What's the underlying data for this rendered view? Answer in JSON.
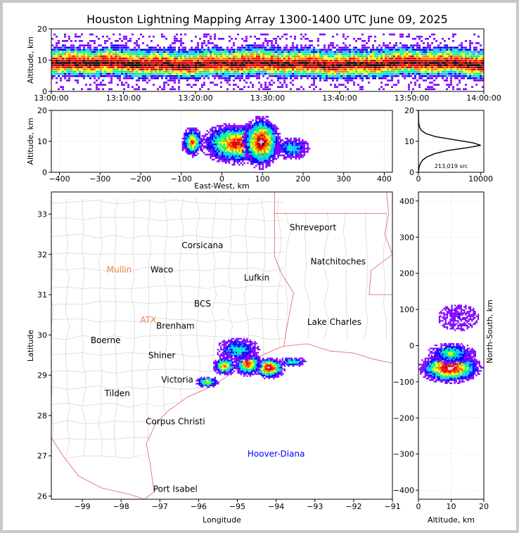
{
  "title": "Houston Lightning Mapping Array 1300-1400 UTC June 09, 2025",
  "colors": {
    "density_scale": [
      "#ffffff",
      "#7f00ff",
      "#0000ff",
      "#00c8ff",
      "#00ff80",
      "#ffff00",
      "#ff8000",
      "#ff0000",
      "#b40000",
      "#000000"
    ],
    "state_border": "#e06060",
    "county_border": "#cccccc",
    "city_label": "#000000",
    "station_label_orange": "#f08040",
    "hoover_label": "#0000ff"
  },
  "chart_data": [
    {
      "panel": "time-altitude",
      "type": "heatmap",
      "xlabel": "",
      "ylabel": "Altitude, km",
      "x_ticks": [
        "13:00:00",
        "13:10:00",
        "13:20:00",
        "13:30:00",
        "13:40:00",
        "13:50:00",
        "14:00:00"
      ],
      "y_ticks": [
        "0",
        "10",
        "20"
      ],
      "ylim": [
        0,
        20
      ],
      "core_altitude_km": 9
    },
    {
      "panel": "east-west-altitude",
      "type": "heatmap",
      "xlabel": "East-West, km",
      "ylabel": "Altitude, km",
      "x_ticks": [
        "−400",
        "−300",
        "−200",
        "−100",
        "0",
        "100",
        "200",
        "300",
        "400"
      ],
      "y_ticks": [
        "0",
        "10",
        "20"
      ],
      "xlim": [
        -420,
        420
      ],
      "ylim": [
        0,
        20
      ],
      "cells": [
        {
          "x_center_km": 35,
          "alt_center_km": 9.5,
          "x_halfwidth_km": 75,
          "alt_halfwidth_km": 5.5,
          "peak_level": 8
        },
        {
          "x_center_km": 95,
          "alt_center_km": 10,
          "x_halfwidth_km": 40,
          "alt_halfwidth_km": 7,
          "peak_level": 9
        },
        {
          "x_center_km": -75,
          "alt_center_km": 10,
          "x_halfwidth_km": 22,
          "alt_halfwidth_km": 4,
          "peak_level": 7
        },
        {
          "x_center_km": 170,
          "alt_center_km": 8,
          "x_halfwidth_km": 35,
          "alt_halfwidth_km": 3,
          "peak_level": 4
        }
      ]
    },
    {
      "panel": "altitude-histogram",
      "type": "line",
      "ylabel": "",
      "x_ticks": [
        "0",
        "10000"
      ],
      "y_ticks": [
        "0",
        "10",
        "20"
      ],
      "xlim": [
        0,
        10500
      ],
      "ylim": [
        0,
        20
      ],
      "altitude_km": [
        0,
        1,
        2,
        3,
        4,
        5,
        6,
        7,
        8,
        8.7,
        9.5,
        10.5,
        11.5,
        12.5,
        13.5,
        14.5,
        15.5,
        16.5,
        18,
        20
      ],
      "sources": [
        0,
        60,
        150,
        350,
        700,
        1400,
        2600,
        4600,
        8000,
        10000,
        8800,
        5800,
        2800,
        1200,
        500,
        200,
        80,
        30,
        10,
        0
      ],
      "annotation": "213,019 src"
    },
    {
      "panel": "plan-view",
      "type": "heatmap",
      "xlabel": "Longitude",
      "ylabel": "Latitude",
      "x_ticks": [
        "−99",
        "−98",
        "−97",
        "−96",
        "−95",
        "−94",
        "−93",
        "−92",
        "−91"
      ],
      "y_ticks": [
        "26",
        "27",
        "28",
        "29",
        "30",
        "31",
        "32",
        "33"
      ],
      "xlim": [
        -99.8,
        -91.0
      ],
      "ylim": [
        25.92,
        33.55
      ],
      "cells": [
        {
          "lon": -94.2,
          "lat": 29.2,
          "dlon": 0.35,
          "dlat": 0.22,
          "peak_level": 9
        },
        {
          "lon": -94.75,
          "lat": 29.3,
          "dlon": 0.3,
          "dlat": 0.25,
          "peak_level": 8
        },
        {
          "lon": -95.35,
          "lat": 29.25,
          "dlon": 0.25,
          "dlat": 0.2,
          "peak_level": 7
        },
        {
          "lon": -95.8,
          "lat": 28.85,
          "dlon": 0.25,
          "dlat": 0.12,
          "peak_level": 6
        },
        {
          "lon": -93.6,
          "lat": 29.35,
          "dlon": 0.3,
          "dlat": 0.1,
          "peak_level": 5
        },
        {
          "lon": -95.0,
          "lat": 29.65,
          "dlon": 0.45,
          "dlat": 0.25,
          "peak_level": 4
        }
      ],
      "labels": [
        {
          "text": "Shreveport",
          "lon": -93.05,
          "lat": 32.6,
          "color": "#000000"
        },
        {
          "text": "Corsicana",
          "lon": -95.9,
          "lat": 32.15,
          "color": "#000000"
        },
        {
          "text": "Natchitoches",
          "lon": -92.4,
          "lat": 31.75,
          "color": "#000000"
        },
        {
          "text": "Mullin",
          "lon": -98.05,
          "lat": 31.55,
          "color": "#f08040"
        },
        {
          "text": "Waco",
          "lon": -96.95,
          "lat": 31.55,
          "color": "#000000"
        },
        {
          "text": "Lufkin",
          "lon": -94.5,
          "lat": 31.35,
          "color": "#000000"
        },
        {
          "text": "BCS",
          "lon": -95.9,
          "lat": 30.7,
          "color": "#000000"
        },
        {
          "text": "ATX",
          "lon": -97.3,
          "lat": 30.3,
          "color": "#f08040"
        },
        {
          "text": "Brenham",
          "lon": -96.6,
          "lat": 30.15,
          "color": "#000000"
        },
        {
          "text": "Lake Charles",
          "lon": -92.5,
          "lat": 30.25,
          "color": "#000000"
        },
        {
          "text": "Boerne",
          "lon": -98.4,
          "lat": 29.8,
          "color": "#000000"
        },
        {
          "text": "Shiner",
          "lon": -96.95,
          "lat": 29.42,
          "color": "#000000"
        },
        {
          "text": "Victoria",
          "lon": -96.55,
          "lat": 28.82,
          "color": "#000000"
        },
        {
          "text": "Tilden",
          "lon": -98.1,
          "lat": 28.48,
          "color": "#000000"
        },
        {
          "text": "Corpus Christi",
          "lon": -96.6,
          "lat": 27.78,
          "color": "#000000"
        },
        {
          "text": "Hoover-Diana",
          "lon": -94.0,
          "lat": 26.98,
          "color": "#0000ff"
        },
        {
          "text": "Port Isabel",
          "lon": -96.6,
          "lat": 26.1,
          "color": "#000000"
        }
      ]
    },
    {
      "panel": "altitude-north-south",
      "type": "heatmap",
      "xlabel": "Altitude, km",
      "ylabel": "North-South, km",
      "x_ticks": [
        "0",
        "10",
        "20"
      ],
      "y_ticks": [
        "400",
        "300",
        "200",
        "100",
        "0",
        "−100",
        "−200",
        "−300",
        "−400"
      ],
      "xlim": [
        0,
        20
      ],
      "ylim": [
        -425,
        425
      ],
      "cells": [
        {
          "alt_km": 9.5,
          "ns_km": -60,
          "dalt_km": 8,
          "dns_km": 35,
          "peak_level": 9
        },
        {
          "alt_km": 10,
          "ns_km": -20,
          "dalt_km": 6,
          "dns_km": 25,
          "peak_level": 5
        },
        {
          "alt_km": 12,
          "ns_km": 80,
          "dalt_km": 5,
          "dns_km": 30,
          "peak_level": 1
        }
      ]
    }
  ]
}
